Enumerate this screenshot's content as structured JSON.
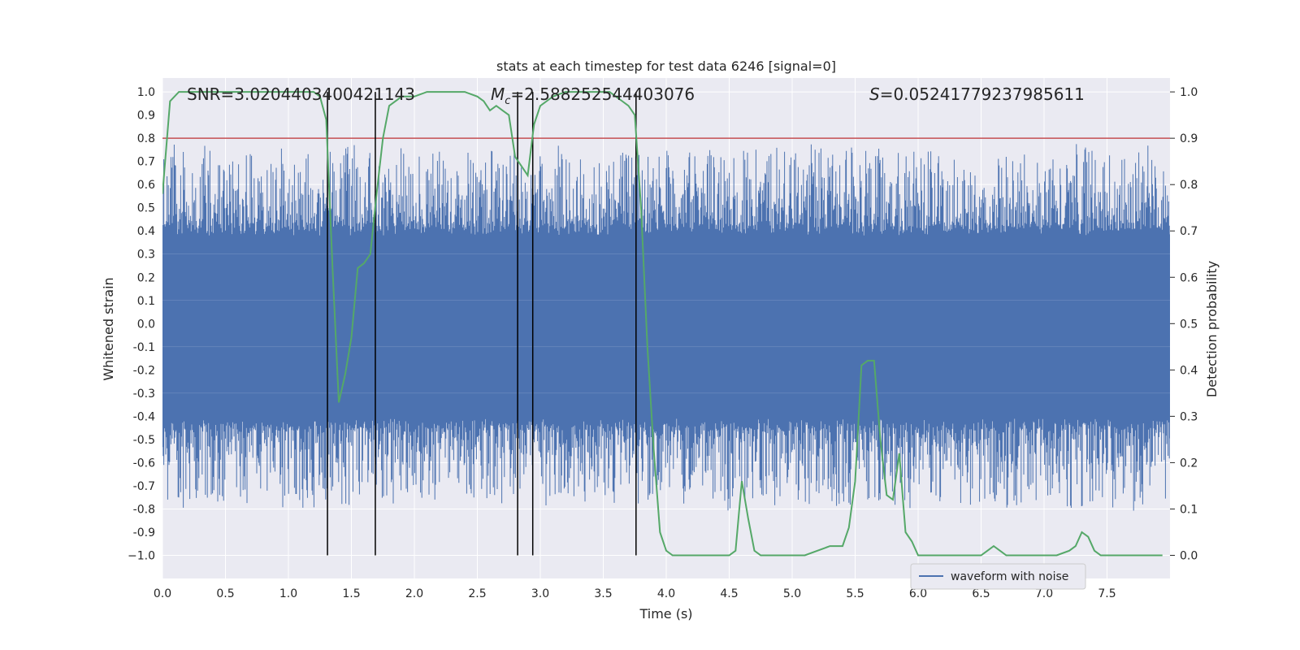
{
  "chart_data": {
    "type": "line",
    "title": "stats at each timestep for test data 6246 [signal=0]",
    "xlabel": "Time (s)",
    "ylabel_left": "Whitened strain",
    "ylabel_right": "Detection probability",
    "xlim": [
      0.0,
      8.0
    ],
    "ylim_left": [
      -1.1,
      1.06
    ],
    "ylim_right": [
      -0.05,
      1.03
    ],
    "x_ticks": [
      "0.0",
      "0.5",
      "1.0",
      "1.5",
      "2.0",
      "2.5",
      "3.0",
      "3.5",
      "4.0",
      "4.5",
      "5.0",
      "5.5",
      "6.0",
      "6.5",
      "7.0",
      "7.5"
    ],
    "y_left_ticks": [
      "1.0",
      "0.9",
      "0.8",
      "0.7",
      "0.6",
      "0.5",
      "0.4",
      "0.3",
      "0.2",
      "0.1",
      "0.0",
      "-0.1",
      "-0.2",
      "-0.3",
      "-0.4",
      "-0.5",
      "-0.6",
      "-0.7",
      "-0.8",
      "-0.9",
      "−1.0"
    ],
    "y_right_ticks": [
      "1.0",
      "0.9",
      "0.8",
      "0.7",
      "0.6",
      "0.5",
      "0.4",
      "0.3",
      "0.2",
      "0.1",
      "0.0"
    ],
    "annotations": {
      "snr": "SNR=3.0204403400421143",
      "mc_symbol": "M",
      "mc_sub": "c",
      "mc_value": "=2.588252544403076",
      "s_symbol": "S",
      "s_value": "=0.05241779237985611"
    },
    "threshold": {
      "value": 0.9,
      "axis": "right",
      "color": "#c44e52"
    },
    "vertical_lines_x": [
      1.31,
      1.69,
      2.82,
      2.94,
      3.76
    ],
    "legend": [
      {
        "label": "waveform with noise",
        "color": "#4c72b0"
      }
    ],
    "series": [
      {
        "name": "waveform with noise",
        "axis": "left",
        "color": "#4c72b0",
        "envelope": {
          "core_upper": 0.38,
          "core_lower": -0.41,
          "typical_peak": 0.6,
          "duration_s": 8.0
        }
      },
      {
        "name": "detection probability",
        "axis": "right",
        "color": "#55a868",
        "x": [
          0.0,
          0.06,
          0.13,
          0.25,
          0.5,
          0.75,
          1.0,
          1.1,
          1.2,
          1.25,
          1.3,
          1.35,
          1.4,
          1.45,
          1.5,
          1.55,
          1.6,
          1.65,
          1.7,
          1.75,
          1.8,
          1.9,
          2.0,
          2.1,
          2.25,
          2.4,
          2.5,
          2.55,
          2.6,
          2.65,
          2.7,
          2.75,
          2.8,
          2.85,
          2.9,
          2.95,
          3.0,
          3.05,
          3.1,
          3.2,
          3.3,
          3.4,
          3.5,
          3.55,
          3.6,
          3.65,
          3.7,
          3.75,
          3.8,
          3.85,
          3.9,
          3.95,
          4.0,
          4.05,
          4.1,
          4.3,
          4.5,
          4.55,
          4.6,
          4.65,
          4.7,
          4.75,
          4.8,
          4.9,
          5.0,
          5.1,
          5.2,
          5.3,
          5.35,
          5.4,
          5.45,
          5.5,
          5.55,
          5.6,
          5.65,
          5.7,
          5.75,
          5.8,
          5.85,
          5.9,
          5.95,
          6.0,
          6.1,
          6.3,
          6.5,
          6.55,
          6.6,
          6.65,
          6.7,
          6.8,
          6.9,
          7.0,
          7.1,
          7.2,
          7.25,
          7.3,
          7.35,
          7.4,
          7.45,
          7.5,
          7.6,
          7.7,
          7.8,
          7.94
        ],
        "y": [
          0.78,
          0.98,
          1.0,
          1.0,
          1.0,
          1.0,
          1.0,
          1.0,
          1.0,
          0.99,
          0.94,
          0.62,
          0.33,
          0.39,
          0.47,
          0.62,
          0.63,
          0.65,
          0.78,
          0.9,
          0.97,
          0.99,
          0.99,
          1.0,
          1.0,
          1.0,
          0.99,
          0.98,
          0.96,
          0.97,
          0.96,
          0.95,
          0.86,
          0.84,
          0.82,
          0.93,
          0.97,
          0.98,
          0.99,
          1.0,
          1.0,
          1.0,
          1.0,
          1.0,
          0.99,
          0.98,
          0.97,
          0.95,
          0.75,
          0.45,
          0.23,
          0.05,
          0.01,
          0.0,
          0.0,
          0.0,
          0.0,
          0.01,
          0.16,
          0.08,
          0.01,
          0.0,
          0.0,
          0.0,
          0.0,
          0.0,
          0.01,
          0.02,
          0.02,
          0.02,
          0.06,
          0.16,
          0.41,
          0.42,
          0.42,
          0.25,
          0.13,
          0.12,
          0.22,
          0.05,
          0.03,
          0.0,
          0.0,
          0.0,
          0.0,
          0.01,
          0.02,
          0.01,
          0.0,
          0.0,
          0.0,
          0.0,
          0.0,
          0.01,
          0.02,
          0.05,
          0.04,
          0.01,
          0.0,
          0.0,
          0.0,
          0.0,
          0.0,
          0.0
        ]
      }
    ]
  }
}
